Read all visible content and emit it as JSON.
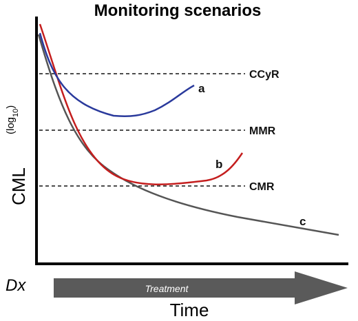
{
  "title": "Monitoring scenarios",
  "y_axis": {
    "label": "CML",
    "sublabel": "(log10)"
  },
  "x_axis": {
    "start_label": "Dx",
    "arrow_label": "Treatment",
    "label": "Time"
  },
  "thresholds": [
    {
      "id": "ccyr",
      "label": "CCyR"
    },
    {
      "id": "mmr",
      "label": "MMR"
    },
    {
      "id": "cmr",
      "label": "CMR"
    }
  ],
  "curves": [
    {
      "id": "a",
      "label": "a",
      "color": "#2a3a9c"
    },
    {
      "id": "b",
      "label": "b",
      "color": "#c41e1e"
    },
    {
      "id": "c",
      "label": "c",
      "color": "#555555"
    }
  ],
  "colors": {
    "axis": "#000000",
    "arrow": "#5a5a5a"
  }
}
